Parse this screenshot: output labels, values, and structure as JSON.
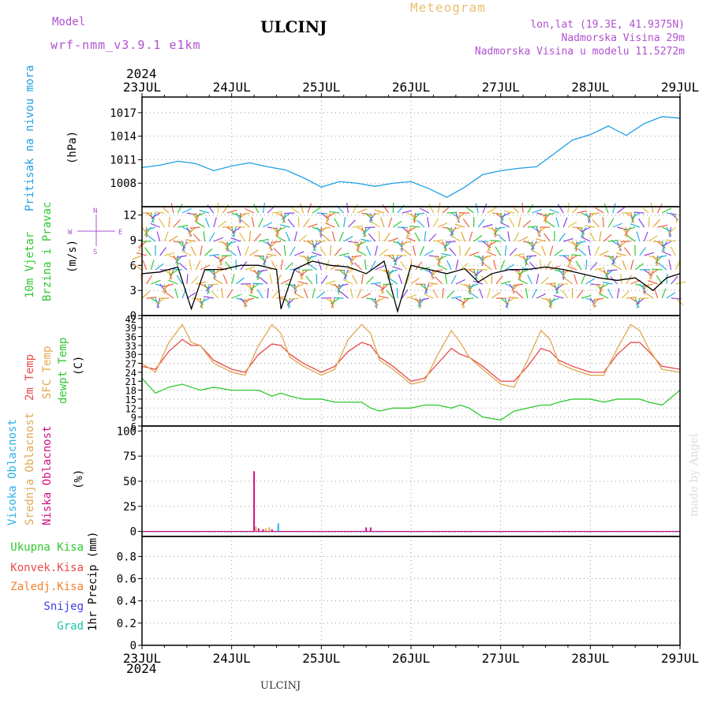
{
  "header": {
    "model_label": "Model",
    "model_name": "wrf-nmm_v3.9.1  e1km",
    "station": "ULCINJ",
    "chart_kind": "Meteogram",
    "location": "lon,lat (19.3E, 41.9375N)",
    "elevation": "Nadmorska Visina 29m",
    "model_elevation": "Nadmorska Visina u modelu 11.5272m",
    "year": "2024"
  },
  "footer": {
    "station": "ULCINJ",
    "watermark": "made by Angel"
  },
  "panel_labels": {
    "pressure": {
      "title": "Pritisak na nivou mora",
      "unit": "(hPa)"
    },
    "wind": {
      "title1": "10m Vjetar",
      "title2": "Brzina i Pravac",
      "unit": "(m/s)",
      "compass": [
        "N",
        "W",
        "E",
        "S"
      ]
    },
    "temp": {
      "t2m": "2m Temp",
      "sfc": "SFC Temp",
      "dew": "dewpt Temp",
      "unit": "(C)"
    },
    "cloud": {
      "high": "Visoka Oblacnost",
      "mid": "Srednja Oblacnost",
      "low": "Niska Oblacnost",
      "unit": "(%)"
    },
    "precip": {
      "unit": "1hr Precip (mm)",
      "legend": [
        "Ukupna Kisa",
        "Konvek.Kisa",
        "Zaledj.Kisa",
        "Snijeg",
        "Grad"
      ]
    }
  },
  "colors": {
    "pressure": "#1e9fe6",
    "t2m": "#e84a4a",
    "sfc": "#e0a850",
    "dew": "#30c830",
    "high": "#30b0e8",
    "mid": "#e0a850",
    "low": "#d01080",
    "total": "#30c830",
    "conv": "#e84a4a",
    "frz": "#f08030",
    "snow": "#4040e0",
    "hail": "#20c0b0"
  },
  "chart_data": [
    {
      "type": "line",
      "name": "pressure",
      "ylim": [
        1005,
        1019
      ],
      "yticks": [
        1008,
        1011,
        1014,
        1017
      ],
      "x_day_ticks": [
        "23JUL",
        "24JUL",
        "25JUL",
        "26JUL",
        "27JUL",
        "28JUL",
        "29JUL"
      ],
      "x_days": [
        0,
        0.2,
        0.4,
        0.6,
        0.8,
        1.0,
        1.2,
        1.4,
        1.6,
        1.8,
        2.0,
        2.2,
        2.4,
        2.6,
        2.8,
        3.0,
        3.2,
        3.4,
        3.6,
        3.8,
        4.0,
        4.2,
        4.4,
        4.6,
        4.8,
        5.0,
        5.2,
        5.4,
        5.6,
        5.8,
        6.0
      ],
      "series": [
        {
          "values": [
            1010,
            1010.3,
            1010.8,
            1010.5,
            1009.6,
            1010.2,
            1010.6,
            1010.1,
            1009.7,
            1008.7,
            1007.5,
            1008.2,
            1008.0,
            1007.6,
            1008.0,
            1008.2,
            1007.3,
            1006.2,
            1007.5,
            1009.1,
            1009.6,
            1009.9,
            1010.1,
            1011.8,
            1013.5,
            1014.2,
            1015.3,
            1014.1,
            1015.6,
            1016.5,
            1016.3
          ]
        }
      ]
    },
    {
      "type": "line",
      "name": "wind",
      "ylim": [
        0,
        13
      ],
      "yticks": [
        0,
        3,
        6,
        9,
        12
      ],
      "x_day_ticks": [
        "23JUL",
        "24JUL",
        "25JUL",
        "26JUL",
        "27JUL",
        "28JUL",
        "29JUL"
      ],
      "x_days": [
        0,
        0.2,
        0.4,
        0.55,
        0.7,
        0.9,
        1.1,
        1.3,
        1.5,
        1.55,
        1.7,
        1.9,
        2.1,
        2.3,
        2.5,
        2.7,
        2.85,
        3.0,
        3.2,
        3.4,
        3.6,
        3.75,
        3.9,
        4.1,
        4.3,
        4.5,
        4.7,
        4.9,
        5.1,
        5.3,
        5.5,
        5.7,
        5.85,
        6.0
      ],
      "series": [
        {
          "values": [
            5,
            5.2,
            5.8,
            0.8,
            5.5,
            5.5,
            6,
            6,
            5.5,
            0.8,
            5.5,
            6.5,
            6,
            5.8,
            5,
            6.5,
            0.5,
            6,
            5.5,
            5,
            5.6,
            4,
            5,
            5.5,
            5.5,
            5.8,
            5.5,
            5,
            4.5,
            4.2,
            4.5,
            3,
            4.5,
            5
          ]
        }
      ],
      "barbs_note": "wind direction vectors"
    },
    {
      "type": "line",
      "name": "temperature",
      "ylim": [
        6,
        43
      ],
      "yticks": [
        6,
        9,
        12,
        15,
        18,
        21,
        24,
        27,
        30,
        33,
        36,
        39,
        42
      ],
      "x_day_ticks": [
        "23JUL",
        "24JUL",
        "25JUL",
        "26JUL",
        "27JUL",
        "28JUL",
        "29JUL"
      ],
      "x_days": [
        0,
        0.15,
        0.3,
        0.45,
        0.55,
        0.65,
        0.8,
        1.0,
        1.15,
        1.3,
        1.45,
        1.55,
        1.65,
        1.8,
        2.0,
        2.15,
        2.3,
        2.45,
        2.55,
        2.65,
        2.8,
        3.0,
        3.15,
        3.3,
        3.45,
        3.55,
        3.65,
        3.8,
        4.0,
        4.15,
        4.3,
        4.45,
        4.55,
        4.65,
        4.8,
        5.0,
        5.15,
        5.3,
        5.45,
        5.55,
        5.65,
        5.8,
        6.0
      ],
      "series": [
        {
          "name": "2m Temp",
          "values": [
            26,
            25,
            31,
            35,
            33,
            33,
            28,
            25,
            24,
            30,
            33.5,
            33,
            30,
            27,
            24,
            26,
            31,
            34,
            33,
            29,
            26,
            21,
            22,
            27,
            32,
            30,
            29,
            26,
            21,
            21,
            26,
            32,
            31,
            28,
            26,
            24,
            24,
            30,
            34,
            34,
            31,
            26,
            25
          ]
        },
        {
          "name": "SFC Temp",
          "values": [
            27,
            24,
            34,
            40,
            34,
            33,
            27,
            24,
            23,
            33,
            40,
            37,
            29,
            26,
            23,
            25,
            35,
            40,
            37,
            28,
            25,
            20,
            21,
            30,
            38,
            34,
            29,
            25,
            20,
            19,
            28,
            38,
            35,
            27,
            25,
            23,
            23,
            32,
            40,
            38,
            32,
            25,
            24
          ]
        },
        {
          "name": "dewpt Temp",
          "values": [
            22,
            17,
            19,
            20,
            19,
            18,
            19,
            18,
            18,
            18,
            16,
            17,
            16,
            15,
            15,
            14,
            14,
            14,
            12,
            11,
            12,
            12,
            13,
            13,
            12,
            13,
            12,
            9,
            8,
            11,
            12,
            13,
            13,
            14,
            15,
            15,
            14,
            15,
            15,
            15,
            14,
            13,
            18
          ]
        }
      ]
    },
    {
      "type": "bar",
      "name": "cloud",
      "ylim": [
        -5,
        105
      ],
      "yticks": [
        0,
        25,
        50,
        75,
        100
      ],
      "x_day_ticks": [
        "23JUL",
        "24JUL",
        "25JUL",
        "26JUL",
        "27JUL",
        "28JUL",
        "29JUL"
      ],
      "series": [
        {
          "name": "Niska Oblacnost",
          "x_days": [
            1.25,
            1.3,
            1.35,
            1.45,
            2.5,
            2.55
          ],
          "values": [
            60,
            3,
            2,
            2,
            4,
            4
          ]
        },
        {
          "name": "Srednja Oblacnost",
          "x_days": [
            1.27,
            1.38,
            1.42
          ],
          "values": [
            5,
            3,
            4
          ]
        },
        {
          "name": "Visoka Oblacnost",
          "x_days": [
            1.52
          ],
          "values": [
            8
          ]
        }
      ]
    },
    {
      "type": "bar",
      "name": "precip",
      "ylim": [
        0,
        0.98
      ],
      "yticks": [
        0,
        0.2,
        0.4,
        0.6,
        0.8
      ],
      "x_day_ticks": [
        "23JUL",
        "24JUL",
        "25JUL",
        "26JUL",
        "27JUL",
        "28JUL",
        "29JUL"
      ],
      "series": [
        {
          "name": "Ukupna Kisa",
          "x_days": [],
          "values": []
        }
      ]
    }
  ]
}
